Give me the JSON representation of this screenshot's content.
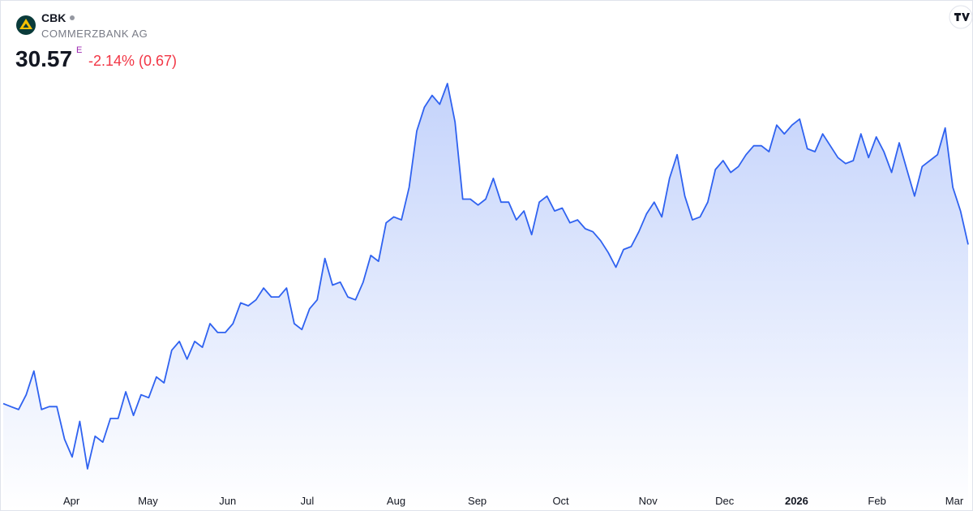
{
  "header": {
    "symbol": "CBK",
    "name": "COMMERZBANK AG",
    "price": "30.57",
    "badge": "E",
    "change": "-2.14% (0.67)"
  },
  "chart_data": {
    "type": "area",
    "color": "#2f62f0",
    "values": [
      25.2,
      25.1,
      25.0,
      25.5,
      26.3,
      25.0,
      25.1,
      25.1,
      24.0,
      23.4,
      24.6,
      23.0,
      24.1,
      23.9,
      24.7,
      24.7,
      25.6,
      24.8,
      25.5,
      25.4,
      26.1,
      25.9,
      27.0,
      27.3,
      26.7,
      27.3,
      27.1,
      27.9,
      27.6,
      27.6,
      27.9,
      28.6,
      28.5,
      28.7,
      29.1,
      28.8,
      28.8,
      29.1,
      27.9,
      27.7,
      28.4,
      28.7,
      30.1,
      29.2,
      29.3,
      28.8,
      28.7,
      29.3,
      30.2,
      30.0,
      31.3,
      31.5,
      31.4,
      32.5,
      34.4,
      35.2,
      35.6,
      35.3,
      36.0,
      34.7,
      32.1,
      32.1,
      31.9,
      32.1,
      32.8,
      32.0,
      32.0,
      31.4,
      31.7,
      30.9,
      32.0,
      32.2,
      31.7,
      31.8,
      31.3,
      31.4,
      31.1,
      31.0,
      30.7,
      30.3,
      29.8,
      30.4,
      30.5,
      31.0,
      31.6,
      32.0,
      31.5,
      32.8,
      33.6,
      32.2,
      31.4,
      31.5,
      32.0,
      33.1,
      33.4,
      33.0,
      33.2,
      33.6,
      33.9,
      33.9,
      33.7,
      34.6,
      34.3,
      34.6,
      34.8,
      33.8,
      33.7,
      34.3,
      33.9,
      33.5,
      33.3,
      33.4,
      34.3,
      33.5,
      34.2,
      33.7,
      33.0,
      34.0,
      33.1,
      32.2,
      33.2,
      33.4,
      33.6,
      34.5,
      32.5,
      31.7,
      30.57
    ],
    "xticks": [
      {
        "value": 8.9,
        "label": "Apr"
      },
      {
        "value": 18.9,
        "label": "May"
      },
      {
        "value": 29.3,
        "label": "Jun"
      },
      {
        "value": 39.7,
        "label": "Jul"
      },
      {
        "value": 51.3,
        "label": "Aug"
      },
      {
        "value": 61.9,
        "label": "Sep"
      },
      {
        "value": 72.8,
        "label": "Oct"
      },
      {
        "value": 84.2,
        "label": "Nov"
      },
      {
        "value": 94.2,
        "label": "Dec"
      },
      {
        "value": 103.6,
        "label": "2026",
        "bold": true
      },
      {
        "value": 114.1,
        "label": "Feb"
      },
      {
        "value": 124.2,
        "label": "Mar"
      }
    ]
  }
}
